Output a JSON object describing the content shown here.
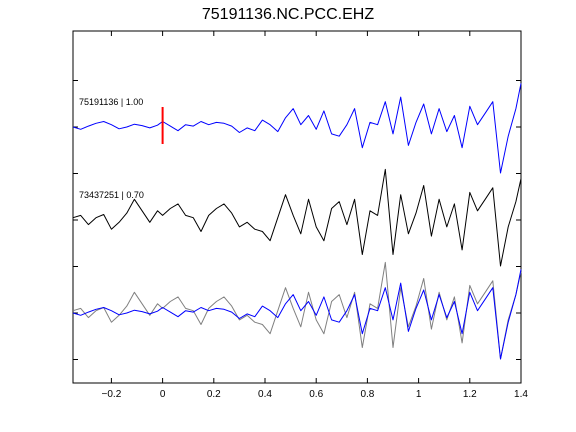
{
  "chart_data": {
    "type": "line",
    "title": "75191136.NC.PCC.EHZ",
    "xlabel": "",
    "ylabel": "",
    "xlim": [
      -0.35,
      1.4
    ],
    "x_ticks": [
      -0.2,
      0,
      0.2,
      0.4,
      0.6,
      0.8,
      1,
      1.2,
      1.4
    ],
    "x_tick_labels": [
      "−0.2",
      "0",
      "0.2",
      "0.4",
      "0.6",
      "0.8",
      "1",
      "1.2",
      "1.4"
    ],
    "grid": false,
    "pick_time": 0,
    "pick_color": "#ff0000",
    "traces": [
      {
        "label": "75191136 | 1.00",
        "color": "#0000ff",
        "offset": 0,
        "x": [
          -0.35,
          -0.32,
          -0.29,
          -0.26,
          -0.23,
          -0.2,
          -0.17,
          -0.14,
          -0.11,
          -0.08,
          -0.05,
          -0.02,
          0.0,
          0.03,
          0.06,
          0.09,
          0.12,
          0.15,
          0.18,
          0.21,
          0.24,
          0.27,
          0.3,
          0.33,
          0.36,
          0.39,
          0.42,
          0.45,
          0.48,
          0.51,
          0.54,
          0.57,
          0.6,
          0.63,
          0.66,
          0.69,
          0.72,
          0.75,
          0.78,
          0.81,
          0.84,
          0.87,
          0.9,
          0.93,
          0.96,
          0.99,
          1.02,
          1.05,
          1.08,
          1.11,
          1.14,
          1.17,
          1.2,
          1.23,
          1.26,
          1.29,
          1.32,
          1.35,
          1.38,
          1.4
        ],
        "y": [
          0.0,
          -0.05,
          0.02,
          0.08,
          0.12,
          0.05,
          -0.04,
          0.0,
          0.06,
          0.03,
          -0.02,
          0.04,
          0.12,
          0.02,
          -0.08,
          0.05,
          0.02,
          0.12,
          0.05,
          0.1,
          0.08,
          0.02,
          -0.12,
          -0.02,
          -0.08,
          0.15,
          0.05,
          -0.1,
          0.2,
          0.4,
          0.05,
          0.25,
          -0.05,
          0.35,
          -0.15,
          -0.2,
          0.05,
          0.4,
          -0.45,
          0.1,
          0.05,
          0.55,
          -0.15,
          0.65,
          -0.4,
          0.1,
          0.5,
          -0.15,
          0.4,
          -0.1,
          0.25,
          -0.45,
          0.45,
          0.05,
          0.3,
          0.55,
          -1.0,
          -0.2,
          0.4,
          0.95
        ]
      },
      {
        "label": "73437251 | 0.70",
        "color": "#000000",
        "offset": -2,
        "x": [
          -0.35,
          -0.32,
          -0.29,
          -0.26,
          -0.23,
          -0.2,
          -0.17,
          -0.14,
          -0.11,
          -0.08,
          -0.05,
          -0.02,
          0.0,
          0.03,
          0.06,
          0.09,
          0.12,
          0.15,
          0.18,
          0.21,
          0.24,
          0.27,
          0.3,
          0.33,
          0.36,
          0.39,
          0.42,
          0.45,
          0.48,
          0.51,
          0.54,
          0.57,
          0.6,
          0.63,
          0.66,
          0.69,
          0.72,
          0.75,
          0.78,
          0.81,
          0.84,
          0.87,
          0.9,
          0.93,
          0.96,
          0.99,
          1.02,
          1.05,
          1.08,
          1.11,
          1.14,
          1.17,
          1.2,
          1.23,
          1.26,
          1.29,
          1.32,
          1.35,
          1.38,
          1.4
        ],
        "y": [
          0.05,
          0.1,
          -0.1,
          0.05,
          0.12,
          -0.2,
          -0.05,
          0.15,
          0.45,
          0.2,
          -0.05,
          0.2,
          0.1,
          0.25,
          0.35,
          0.1,
          0.05,
          -0.25,
          0.1,
          0.25,
          0.35,
          0.15,
          -0.15,
          -0.05,
          -0.2,
          -0.25,
          -0.45,
          0.05,
          0.55,
          0.1,
          -0.3,
          0.45,
          -0.15,
          -0.45,
          0.25,
          0.4,
          -0.1,
          0.45,
          -0.75,
          0.2,
          0.1,
          1.1,
          -0.75,
          0.55,
          -0.3,
          0.15,
          0.75,
          -0.35,
          0.45,
          -0.15,
          0.35,
          -0.65,
          0.6,
          0.2,
          0.45,
          0.7,
          -1.0,
          -0.15,
          0.4,
          0.9
        ]
      },
      {
        "label": "",
        "color": "#808080",
        "offset": -4,
        "x": [
          -0.35,
          -0.32,
          -0.29,
          -0.26,
          -0.23,
          -0.2,
          -0.17,
          -0.14,
          -0.11,
          -0.08,
          -0.05,
          -0.02,
          0.0,
          0.03,
          0.06,
          0.09,
          0.12,
          0.15,
          0.18,
          0.21,
          0.24,
          0.27,
          0.3,
          0.33,
          0.36,
          0.39,
          0.42,
          0.45,
          0.48,
          0.51,
          0.54,
          0.57,
          0.6,
          0.63,
          0.66,
          0.69,
          0.72,
          0.75,
          0.78,
          0.81,
          0.84,
          0.87,
          0.9,
          0.93,
          0.96,
          0.99,
          1.02,
          1.05,
          1.08,
          1.11,
          1.14,
          1.17,
          1.2,
          1.23,
          1.26,
          1.29,
          1.32,
          1.35,
          1.38,
          1.4
        ],
        "y": [
          0.05,
          0.1,
          -0.1,
          0.05,
          0.12,
          -0.2,
          -0.05,
          0.15,
          0.45,
          0.2,
          -0.05,
          0.2,
          0.1,
          0.25,
          0.35,
          0.1,
          0.05,
          -0.25,
          0.1,
          0.25,
          0.35,
          0.15,
          -0.15,
          -0.05,
          -0.2,
          -0.25,
          -0.45,
          0.05,
          0.55,
          0.1,
          -0.3,
          0.45,
          -0.15,
          -0.45,
          0.25,
          0.4,
          -0.1,
          0.45,
          -0.75,
          0.2,
          0.1,
          1.1,
          -0.75,
          0.55,
          -0.3,
          0.15,
          0.75,
          -0.35,
          0.45,
          -0.15,
          0.35,
          -0.65,
          0.6,
          0.2,
          0.45,
          0.7,
          -1.0,
          -0.15,
          0.4,
          0.9
        ]
      },
      {
        "label": "",
        "color": "#0000ff",
        "offset": -4,
        "x": [
          -0.35,
          -0.32,
          -0.29,
          -0.26,
          -0.23,
          -0.2,
          -0.17,
          -0.14,
          -0.11,
          -0.08,
          -0.05,
          -0.02,
          0.0,
          0.03,
          0.06,
          0.09,
          0.12,
          0.15,
          0.18,
          0.21,
          0.24,
          0.27,
          0.3,
          0.33,
          0.36,
          0.39,
          0.42,
          0.45,
          0.48,
          0.51,
          0.54,
          0.57,
          0.6,
          0.63,
          0.66,
          0.69,
          0.72,
          0.75,
          0.78,
          0.81,
          0.84,
          0.87,
          0.9,
          0.93,
          0.96,
          0.99,
          1.02,
          1.05,
          1.08,
          1.11,
          1.14,
          1.17,
          1.2,
          1.23,
          1.26,
          1.29,
          1.32,
          1.35,
          1.38,
          1.4
        ],
        "y": [
          0.0,
          -0.05,
          0.02,
          0.08,
          0.12,
          0.05,
          -0.04,
          0.0,
          0.06,
          0.03,
          -0.02,
          0.04,
          0.12,
          0.02,
          -0.08,
          0.05,
          0.02,
          0.12,
          0.05,
          0.1,
          0.08,
          0.02,
          -0.12,
          -0.02,
          -0.08,
          0.15,
          0.05,
          -0.1,
          0.2,
          0.4,
          0.05,
          0.25,
          -0.05,
          0.35,
          -0.15,
          -0.2,
          0.05,
          0.4,
          -0.45,
          0.1,
          0.05,
          0.55,
          -0.15,
          0.65,
          -0.4,
          0.1,
          0.5,
          -0.15,
          0.4,
          -0.1,
          0.25,
          -0.45,
          0.45,
          0.05,
          0.3,
          0.55,
          -1.0,
          -0.2,
          0.4,
          0.95
        ]
      }
    ]
  }
}
